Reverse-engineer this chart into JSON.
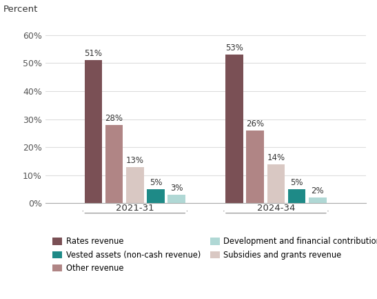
{
  "title": "Percent",
  "groups": [
    "2021-31",
    "2024-34"
  ],
  "categories": [
    "Rates revenue",
    "Other revenue",
    "Subsidies and grants revenue",
    "Vested assets (non-cash revenue)",
    "Development and financial contributions"
  ],
  "values": {
    "2021-31": [
      51,
      28,
      13,
      5,
      3
    ],
    "2024-34": [
      53,
      26,
      14,
      5,
      2
    ]
  },
  "labels": {
    "2021-31": [
      "51%",
      "28%",
      "13%",
      "5%",
      "3%"
    ],
    "2024-34": [
      "53%",
      "26%",
      "14%",
      "5%",
      "2%"
    ]
  },
  "colors": [
    "#7a5055",
    "#b08585",
    "#d9c8c3",
    "#1e8a87",
    "#b0d8d5"
  ],
  "ylim": [
    0,
    65
  ],
  "yticks": [
    0,
    10,
    20,
    30,
    40,
    50,
    60
  ],
  "ytick_labels": [
    "0%",
    "10%",
    "20%",
    "30%",
    "40%",
    "50%",
    "60%"
  ],
  "bar_width": 0.055,
  "background_color": "#ffffff",
  "legend_items": [
    [
      "#7a5055",
      "Rates revenue"
    ],
    [
      "#1e8a87",
      "Vested assets (non-cash revenue)"
    ],
    [
      "#b08585",
      "Other revenue"
    ],
    [
      "#b0d8d5",
      "Development and financial contributions"
    ],
    [
      "#d9c8c3",
      "Subsidies and grants revenue"
    ]
  ]
}
